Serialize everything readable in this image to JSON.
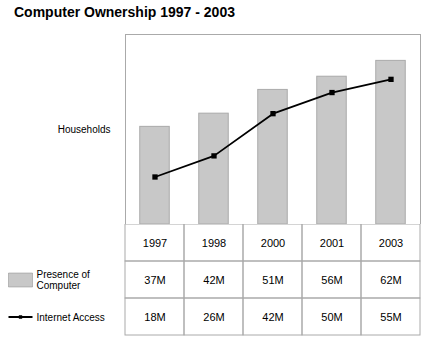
{
  "chart_data": {
    "type": "bar",
    "title": "Computer Ownership  1997 - 2003",
    "ylabel": "Households",
    "categories": [
      "1997",
      "1998",
      "2000",
      "2001",
      "2003"
    ],
    "series": [
      {
        "name": "Presence of\nComputer",
        "type": "bar",
        "color": "#c8c8c8",
        "values": [
          37,
          42,
          51,
          56,
          62
        ],
        "value_labels": [
          "37M",
          "42M",
          "51M",
          "56M",
          "62M"
        ]
      },
      {
        "name": "Internet Access",
        "type": "line",
        "color": "#000000",
        "marker": "square",
        "values": [
          18,
          26,
          42,
          50,
          55
        ],
        "value_labels": [
          "18M",
          "26M",
          "42M",
          "50M",
          "55M"
        ]
      }
    ],
    "ylim": [
      0,
      72
    ],
    "yticks": [],
    "tick_labels": "x",
    "data_labels": true,
    "grid": false
  }
}
